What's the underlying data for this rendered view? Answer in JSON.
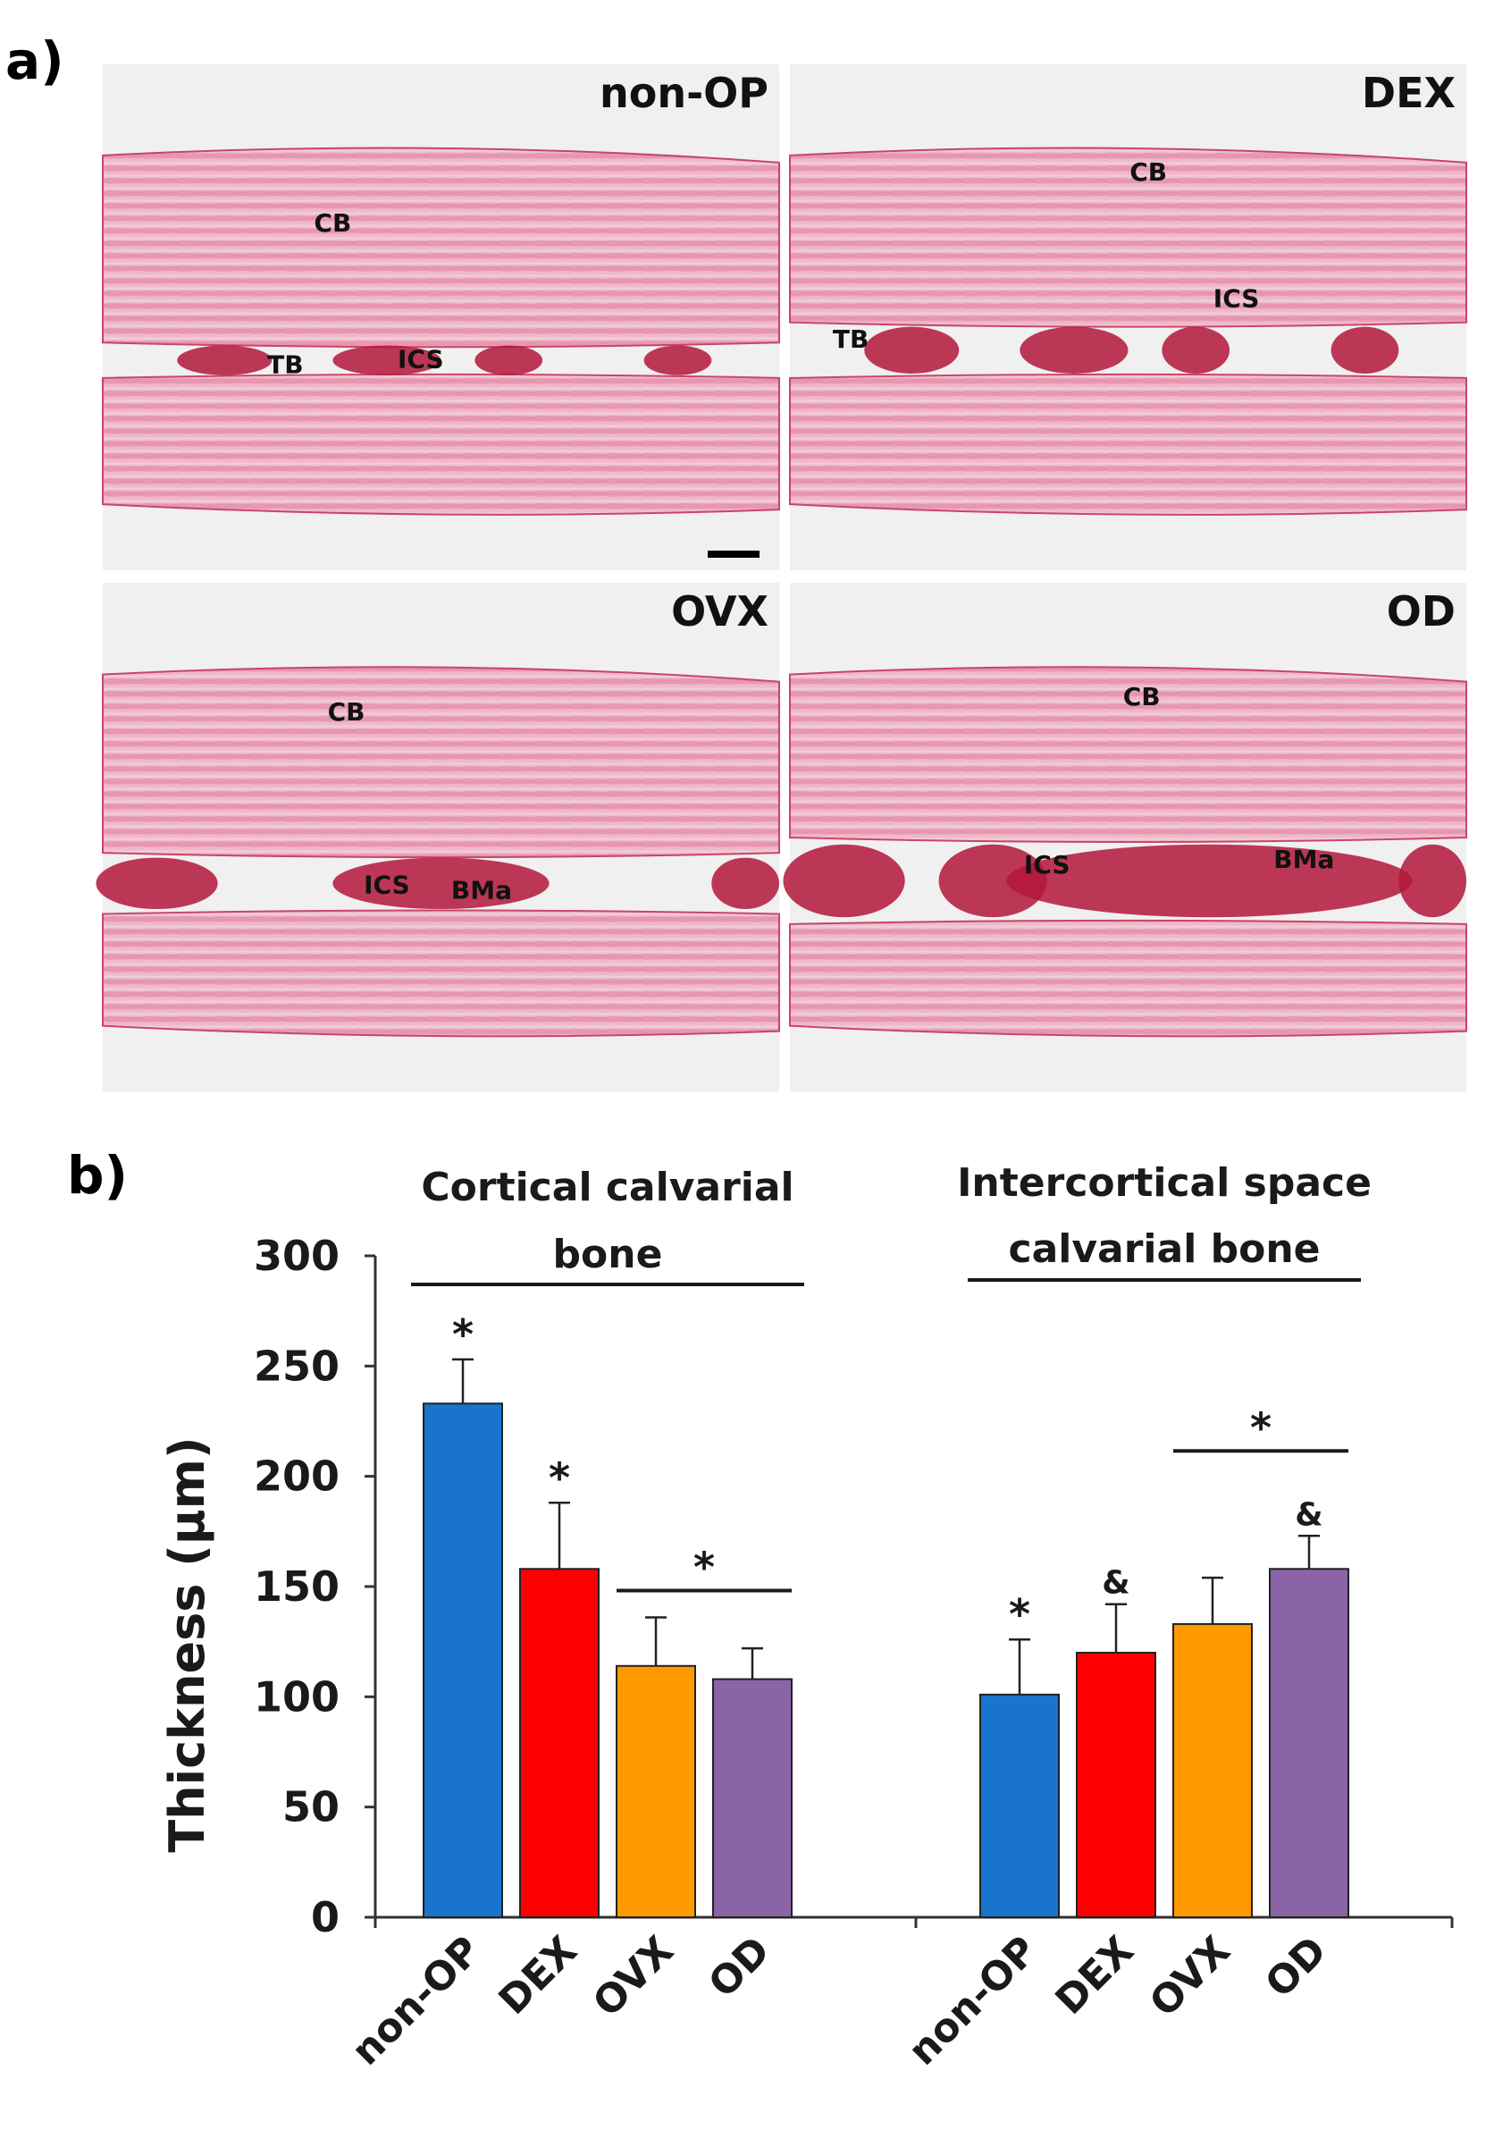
{
  "panel_a": {
    "label": "a)",
    "images": [
      {
        "group": "non-OP",
        "annotations": [
          "CB",
          "TB",
          "ICS"
        ],
        "scale_bar": true
      },
      {
        "group": "DEX",
        "annotations": [
          "CB",
          "TB",
          "ICS"
        ],
        "scale_bar": false
      },
      {
        "group": "OVX",
        "annotations": [
          "CB",
          "ICS",
          "BMa"
        ],
        "scale_bar": false
      },
      {
        "group": "OD",
        "annotations": [
          "CB",
          "ICS",
          "BMa"
        ],
        "scale_bar": false
      }
    ],
    "colors": {
      "stain": "#e58aa5",
      "stain_dark": "#c9446b",
      "marrow": "#b3163a",
      "background": "#f0f0f0"
    }
  },
  "chart_data": {
    "label": "b)",
    "type": "bar",
    "ylabel": "Thickness (µm)",
    "ylim": [
      0,
      300
    ],
    "yticks": [
      0,
      50,
      100,
      150,
      200,
      250,
      300
    ],
    "groups": [
      {
        "title": "Cortical calvarial bone",
        "title_lines": [
          "Cortical calvarial",
          "bone"
        ],
        "categories": [
          "non-OP",
          "DEX",
          "OVX",
          "OD"
        ],
        "values": [
          233,
          158,
          114,
          108
        ],
        "errors": [
          20,
          30,
          22,
          14
        ],
        "marks": [
          "*",
          "*",
          "",
          ""
        ],
        "bracket": {
          "from": "OVX",
          "to": "OD",
          "mark": "*"
        }
      },
      {
        "title": "Intercortical space calvarial bone",
        "title_lines": [
          "Intercortical space",
          "calvarial bone"
        ],
        "categories": [
          "non-OP",
          "DEX",
          "OVX",
          "OD"
        ],
        "values": [
          101,
          120,
          133,
          158
        ],
        "errors": [
          25,
          22,
          21,
          15
        ],
        "marks": [
          "*",
          "&",
          "",
          "&"
        ],
        "bracket": {
          "from": "OVX",
          "to": "OD",
          "mark": "*"
        }
      }
    ],
    "colors": {
      "non-OP": "#1874cd",
      "DEX": "#ff0000",
      "OVX": "#ff9900",
      "OD": "#8a64a6"
    }
  }
}
